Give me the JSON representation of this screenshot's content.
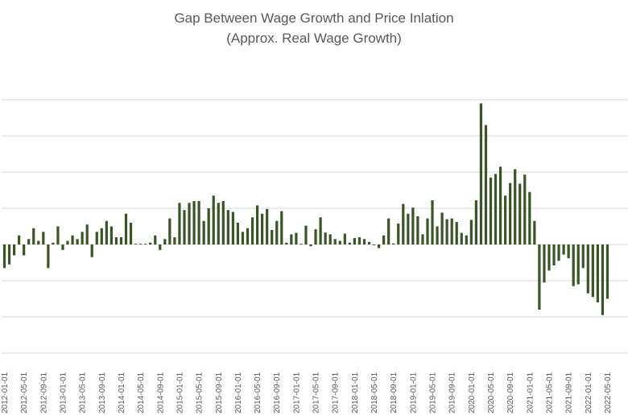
{
  "chart_data": {
    "type": "bar",
    "title": "Gap Between Wage Growth and Price Inlation",
    "subtitle": "(Approx. Real Wage Growth)",
    "xlabel": "",
    "ylabel": "",
    "ylim": [
      -3,
      4
    ],
    "grid": true,
    "legend": "none",
    "bar_color": "#375623",
    "tick_labels": [
      "2012-01-01",
      "2012-05-01",
      "2012-09-01",
      "2013-01-01",
      "2013-05-01",
      "2013-09-01",
      "2014-01-01",
      "2014-05-01",
      "2014-09-01",
      "2015-01-01",
      "2015-05-01",
      "2015-09-01",
      "2016-01-01",
      "2016-05-01",
      "2016-09-01",
      "2017-01-01",
      "2017-05-01",
      "2017-09-01",
      "2018-01-01",
      "2018-05-01",
      "2018-09-01",
      "2019-01-01",
      "2019-05-01",
      "2019-09-01",
      "2020-01-01",
      "2020-05-01",
      "2020-09-01",
      "2021-01-01",
      "2021-05-01",
      "2021-09-01",
      "2022-01-01",
      "2022-05-01"
    ],
    "series": [
      {
        "values": [
          -0.65,
          -0.55,
          -0.3,
          0.25,
          -0.3,
          0.15,
          0.45,
          0.1,
          0.35,
          -0.65,
          0.05,
          0.5,
          -0.15,
          0.1,
          0.25,
          0.15,
          0.35,
          0.55,
          -0.35,
          0.35,
          0.45,
          0.65,
          0.5,
          0.2,
          0.2,
          0.85,
          0.6,
          0.02,
          0.02,
          0.02,
          0.05,
          0.25,
          -0.15,
          0.15,
          0.72,
          0.2,
          1.15,
          0.95,
          1.15,
          1.2,
          1.2,
          0.65,
          1.0,
          1.35,
          1.15,
          1.2,
          0.95,
          0.9,
          0.6,
          0.35,
          0.45,
          0.75,
          1.08,
          0.85,
          0.98,
          0.4,
          0.65,
          0.92,
          0.05,
          0.28,
          0.32,
          0.02,
          0.52,
          -0.05,
          0.42,
          0.75,
          0.33,
          0.28,
          0.15,
          0.1,
          0.3,
          0.05,
          0.18,
          0.2,
          0.15,
          0.07,
          -0.02,
          -0.1,
          0.25,
          0.72,
          0.03,
          0.58,
          1.12,
          0.85,
          1.02,
          0.78,
          0.28,
          0.72,
          1.22,
          0.5,
          0.88,
          0.7,
          0.72,
          0.62,
          0.32,
          0.25,
          0.68,
          1.22,
          3.9,
          3.3,
          1.85,
          1.95,
          2.15,
          1.35,
          1.7,
          2.08,
          1.68,
          1.93,
          1.45,
          0.65,
          -1.8,
          -1.05,
          -0.72,
          -0.58,
          -0.45,
          -0.28,
          -0.38,
          -1.15,
          -1.1,
          -0.65,
          -1.35,
          -1.45,
          -1.6,
          -1.95,
          -1.5
        ]
      }
    ]
  }
}
